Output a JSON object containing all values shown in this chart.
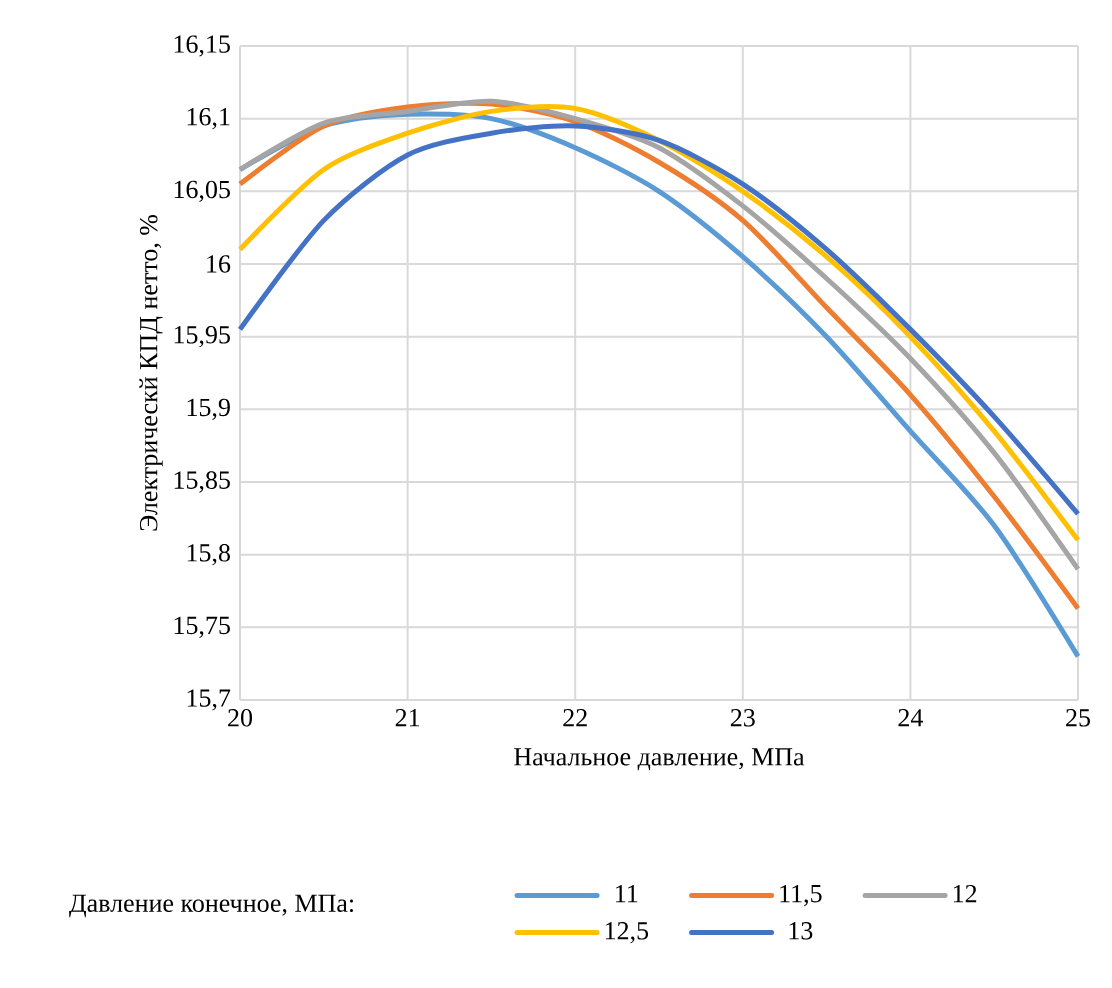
{
  "chart_data": {
    "type": "line",
    "xlabel": "Начальное давление, МПа",
    "ylabel": "Электрическй КПД нетто, %",
    "legend_title": "Давление конечное, МПа:",
    "legend": "bottom",
    "grid": true,
    "x": [
      20,
      20.5,
      21,
      21.5,
      22,
      22.5,
      23,
      23.5,
      24,
      24.5,
      25
    ],
    "xlim": [
      20,
      25
    ],
    "ylim": [
      15.7,
      16.15
    ],
    "xticks": [
      20,
      21,
      22,
      23,
      24,
      25
    ],
    "yticks": [
      {
        "value": 15.7,
        "label": "15,7"
      },
      {
        "value": 15.75,
        "label": "15,75"
      },
      {
        "value": 15.8,
        "label": "15,8"
      },
      {
        "value": 15.85,
        "label": "15,85"
      },
      {
        "value": 15.9,
        "label": "15,9"
      },
      {
        "value": 15.95,
        "label": "15,95"
      },
      {
        "value": 16,
        "label": "16"
      },
      {
        "value": 16.05,
        "label": "16,05"
      },
      {
        "value": 16.1,
        "label": "16,1"
      },
      {
        "value": 16.15,
        "label": "16,15"
      }
    ],
    "series": [
      {
        "name": "11",
        "color": "#5b9bd5",
        "values": [
          16.065,
          16.095,
          16.103,
          16.1,
          16.08,
          16.05,
          16.005,
          15.95,
          15.885,
          15.82,
          15.73
        ]
      },
      {
        "name": "11,5",
        "color": "#ed7d31",
        "values": [
          16.055,
          16.095,
          16.108,
          16.11,
          16.098,
          16.07,
          16.03,
          15.97,
          15.91,
          15.84,
          15.763
        ]
      },
      {
        "name": "12",
        "color": "#a5a5a5",
        "values": [
          16.065,
          16.097,
          16.105,
          16.112,
          16.1,
          16.08,
          16.04,
          15.99,
          15.935,
          15.87,
          15.79
        ]
      },
      {
        "name": "12,5",
        "color": "#ffc000",
        "values": [
          16.01,
          16.065,
          16.09,
          16.105,
          16.107,
          16.085,
          16.05,
          16.005,
          15.95,
          15.885,
          15.81
        ]
      },
      {
        "name": "13",
        "color": "#4472c4",
        "values": [
          15.955,
          16.03,
          16.075,
          16.09,
          16.095,
          16.085,
          16.055,
          16.01,
          15.955,
          15.895,
          15.828
        ]
      }
    ]
  }
}
